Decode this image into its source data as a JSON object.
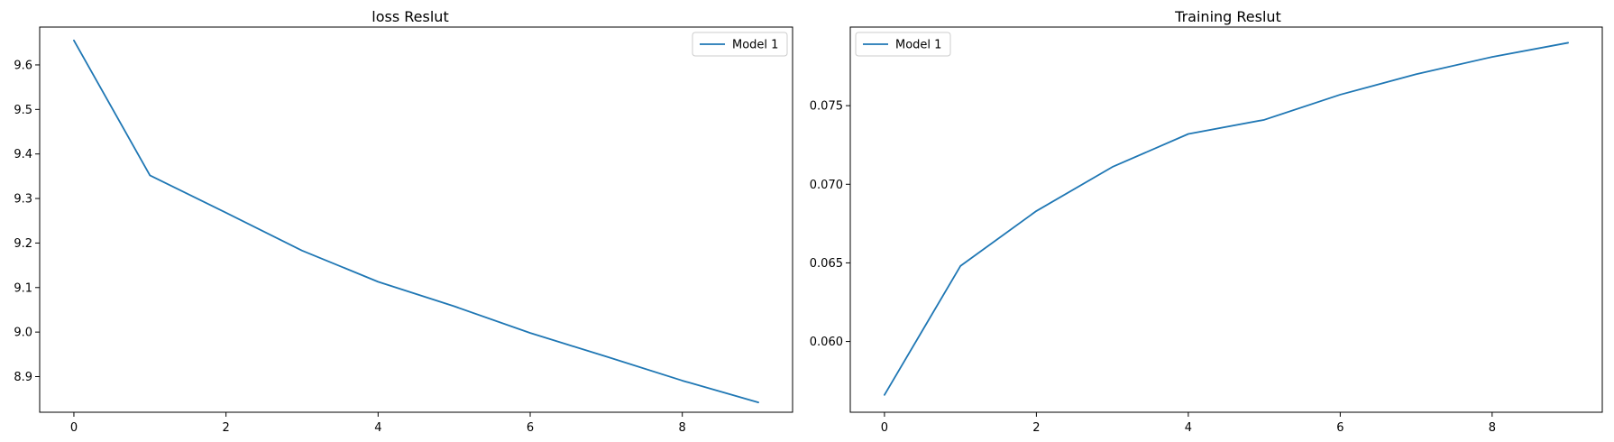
{
  "chart_data": [
    {
      "type": "line",
      "title": "loss Reslut",
      "xlabel": "",
      "ylabel": "",
      "x": [
        0,
        1,
        2,
        3,
        4,
        5,
        6,
        7,
        8,
        9
      ],
      "series": [
        {
          "name": "Model 1",
          "values": [
            9.655,
            9.352,
            9.268,
            9.183,
            9.113,
            9.058,
            8.998,
            8.945,
            8.891,
            8.842
          ],
          "color": "#1f77b4"
        }
      ],
      "xlim": [
        -0.45,
        9.45
      ],
      "ylim": [
        8.82,
        9.685
      ],
      "xticks": [
        0,
        2,
        4,
        6,
        8
      ],
      "yticks": [
        8.9,
        9.0,
        9.1,
        9.2,
        9.3,
        9.4,
        9.5,
        9.6
      ],
      "ytick_labels": [
        "8.9",
        "9.0",
        "9.1",
        "9.2",
        "9.3",
        "9.4",
        "9.5",
        "9.6"
      ],
      "legend": "upper-right",
      "grid": false
    },
    {
      "type": "line",
      "title": "Training Reslut",
      "xlabel": "",
      "ylabel": "",
      "x": [
        0,
        1,
        2,
        3,
        4,
        5,
        6,
        7,
        8,
        9
      ],
      "series": [
        {
          "name": "Model 1",
          "values": [
            0.0566,
            0.0648,
            0.0683,
            0.0711,
            0.0732,
            0.0741,
            0.0757,
            0.077,
            0.0781,
            0.079
          ],
          "color": "#1f77b4"
        }
      ],
      "xlim": [
        -0.45,
        9.45
      ],
      "ylim": [
        0.0555,
        0.08
      ],
      "xticks": [
        0,
        2,
        4,
        6,
        8
      ],
      "yticks": [
        0.06,
        0.065,
        0.07,
        0.075
      ],
      "ytick_labels": [
        "0.060",
        "0.065",
        "0.070",
        "0.075"
      ],
      "legend": "upper-left",
      "grid": false
    }
  ]
}
